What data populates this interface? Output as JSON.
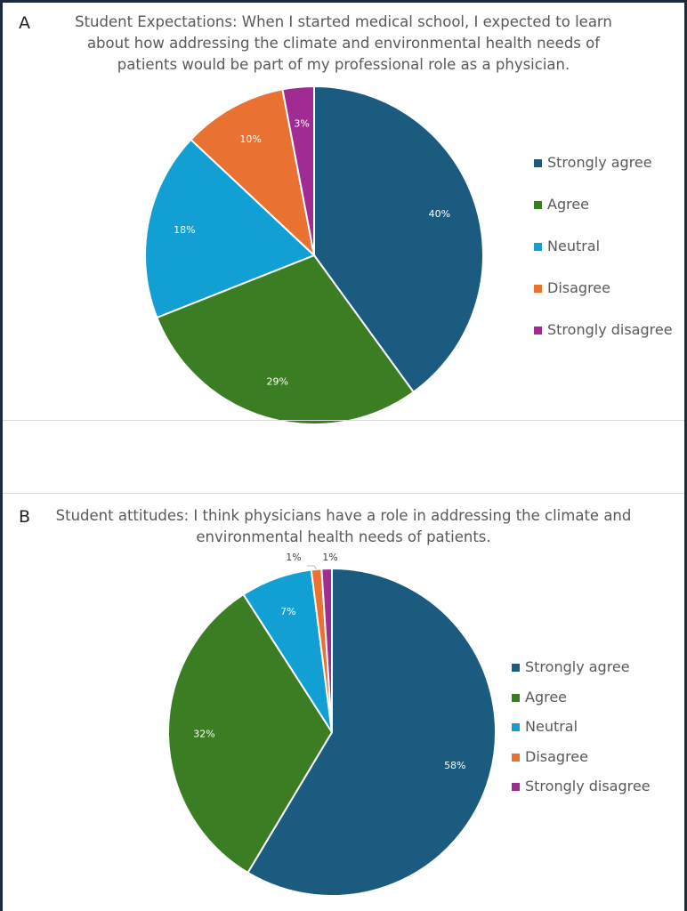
{
  "colors": {
    "strongly_agree": "#1a5b7f",
    "agree": "#3a7d22",
    "neutral": "#129fd3",
    "disagree": "#e97131",
    "strongly_disagree": "#a02b93"
  },
  "chart_data": [
    {
      "type": "pie",
      "panel_label": "A",
      "title_lines": [
        "Student Expectations:  When I started medical school, I expected to learn",
        "about how addressing the climate and environmental health needs of",
        "patients would be part of my professional role as a physician."
      ],
      "categories": [
        "Strongly agree",
        "Agree",
        "Neutral",
        "Disagree",
        "Strongly disagree"
      ],
      "values": [
        40,
        29,
        18,
        10,
        3
      ],
      "data_labels": [
        "40%",
        "29%",
        "18%",
        "10%",
        "3%"
      ],
      "legend_position": "right"
    },
    {
      "type": "pie",
      "panel_label": "B",
      "title_lines": [
        "Student attitudes: I think physicians have a role in addressing the climate and",
        "environmental health needs of patients."
      ],
      "categories": [
        "Strongly agree",
        "Agree",
        "Neutral",
        "Disagree",
        "Strongly disagree"
      ],
      "values": [
        58,
        32,
        7,
        1,
        1
      ],
      "data_labels": [
        "58%",
        "32%",
        "7%",
        "1%",
        "1%"
      ],
      "legend_position": "right"
    }
  ]
}
